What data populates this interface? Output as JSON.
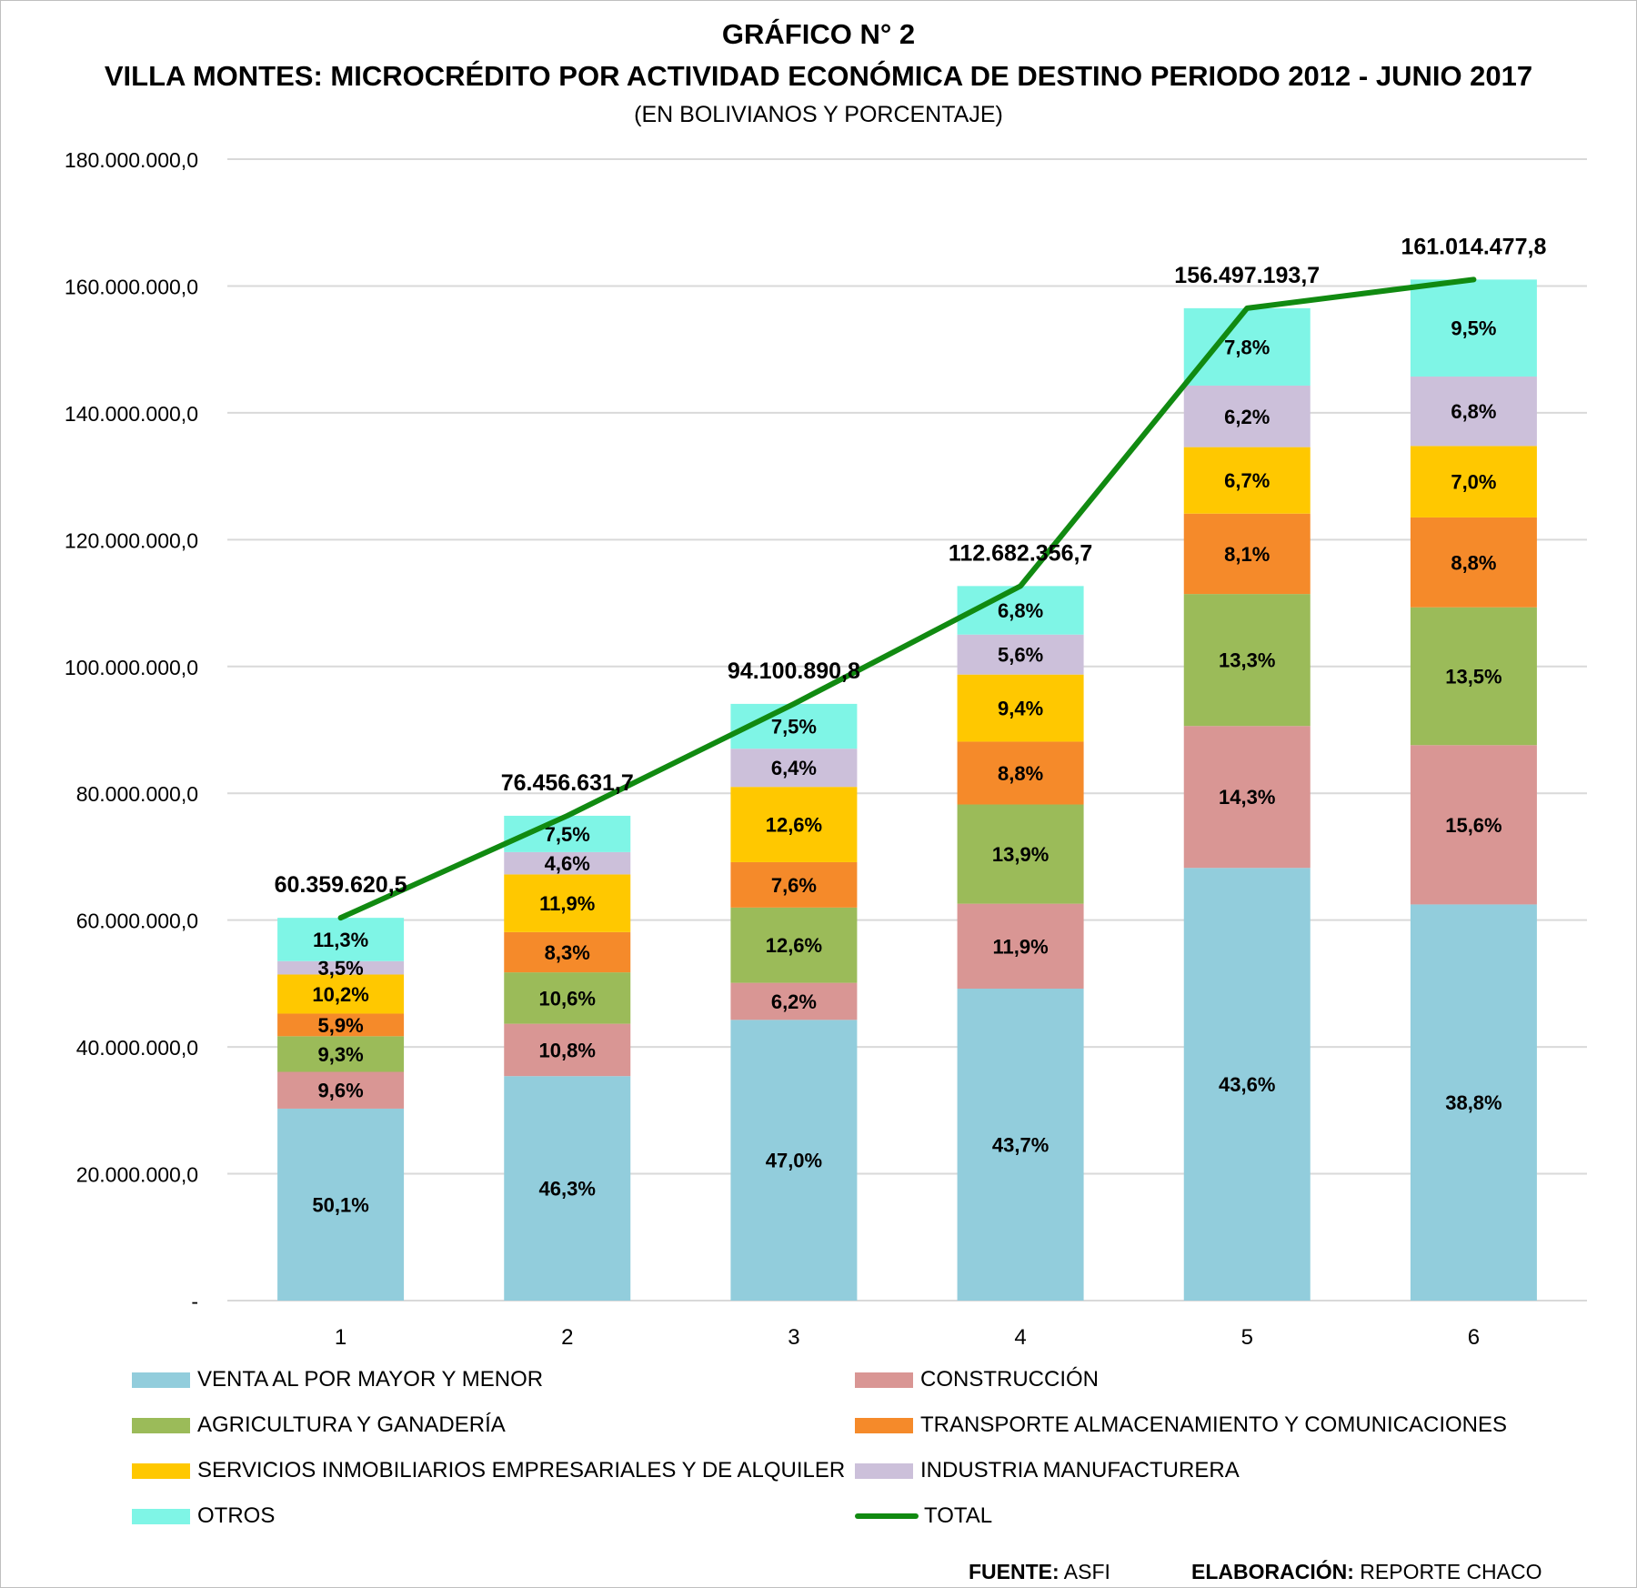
{
  "header": {
    "title": "GRÁFICO N° 2",
    "subtitle": "VILLA MONTES: MICROCRÉDITO POR ACTIVIDAD ECONÓMICA DE DESTINO PERIODO 2012 - JUNIO 2017",
    "units": "(EN BOLIVIANOS Y PORCENTAJE)"
  },
  "footer": {
    "source_label": "FUENTE:",
    "source_value": "ASFI",
    "credit_label": "ELABORACIÓN:",
    "credit_value": "REPORTE CHACO"
  },
  "chart_data": {
    "type": "bar",
    "stacked": true,
    "title": "VILLA MONTES: MICROCRÉDITO POR ACTIVIDAD ECONÓMICA DE DESTINO PERIODO 2012 - JUNIO 2017",
    "categories": [
      "1",
      "2",
      "3",
      "4",
      "5",
      "6"
    ],
    "ylim": [
      0,
      180000000
    ],
    "yticks": [
      0,
      20000000,
      40000000,
      60000000,
      80000000,
      100000000,
      120000000,
      140000000,
      160000000,
      180000000
    ],
    "ytick_labels": [
      "-",
      "20.000.000,0",
      "40.000.000,0",
      "60.000.000,0",
      "80.000.000,0",
      "100.000.000,0",
      "120.000.000,0",
      "140.000.000,0",
      "160.000.000,0",
      "180.000.000,0"
    ],
    "grid": true,
    "legend_position": "bottom",
    "series": [
      {
        "name": "VENTA AL POR MAYOR Y MENOR",
        "color": "#92cddc",
        "values": [
          50.1,
          46.3,
          47.0,
          43.7,
          43.6,
          38.8
        ],
        "labels": [
          "50,1%",
          "46,3%",
          "47,0%",
          "43,7%",
          "43,6%",
          "38,8%"
        ]
      },
      {
        "name": "CONSTRUCCIÓN",
        "color": "#d99694",
        "values": [
          9.6,
          10.8,
          6.2,
          11.9,
          14.3,
          15.6
        ],
        "labels": [
          "9,6%",
          "10,8%",
          "6,2%",
          "11,9%",
          "14,3%",
          "15,6%"
        ]
      },
      {
        "name": "AGRICULTURA Y GANADERÍA",
        "color": "#9bbb59",
        "values": [
          9.3,
          10.6,
          12.6,
          13.9,
          13.3,
          13.5
        ],
        "labels": [
          "9,3%",
          "10,6%",
          "12,6%",
          "13,9%",
          "13,3%",
          "13,5%"
        ]
      },
      {
        "name": "TRANSPORTE ALMACENAMIENTO Y COMUNICACIONES",
        "color": "#f58a2a",
        "values": [
          5.9,
          8.3,
          7.6,
          8.8,
          8.1,
          8.8
        ],
        "labels": [
          "5,9%",
          "8,3%",
          "7,6%",
          "8,8%",
          "8,1%",
          "8,8%"
        ]
      },
      {
        "name": "SERVICIOS INMOBILIARIOS EMPRESARIALES Y DE ALQUILER",
        "color": "#ffc800",
        "values": [
          10.2,
          11.9,
          12.6,
          9.4,
          6.7,
          7.0
        ],
        "labels": [
          "10,2%",
          "11,9%",
          "12,6%",
          "9,4%",
          "6,7%",
          "7,0%"
        ]
      },
      {
        "name": "INDUSTRIA MANUFACTURERA",
        "color": "#ccc0da",
        "values": [
          3.5,
          4.6,
          6.4,
          5.6,
          6.2,
          6.8
        ],
        "labels": [
          "3,5%",
          "4,6%",
          "6,4%",
          "5,6%",
          "6,2%",
          "6,8%"
        ]
      },
      {
        "name": "OTROS",
        "color": "#7ff5e6",
        "values": [
          11.3,
          7.5,
          7.5,
          6.8,
          7.8,
          9.5
        ],
        "labels": [
          "11,3%",
          "7,5%",
          "7,5%",
          "6,8%",
          "7,8%",
          "9,5%"
        ]
      }
    ],
    "total": {
      "name": "TOTAL",
      "color": "#118a11",
      "values": [
        60359620.5,
        76456631.7,
        94100890.8,
        112682356.7,
        156497193.7,
        161014477.8
      ],
      "labels": [
        "60.359.620,5",
        "76.456.631,7",
        "94.100.890,8",
        "112.682.356,7",
        "156.497.193,7",
        "161.014.477,8"
      ]
    }
  }
}
